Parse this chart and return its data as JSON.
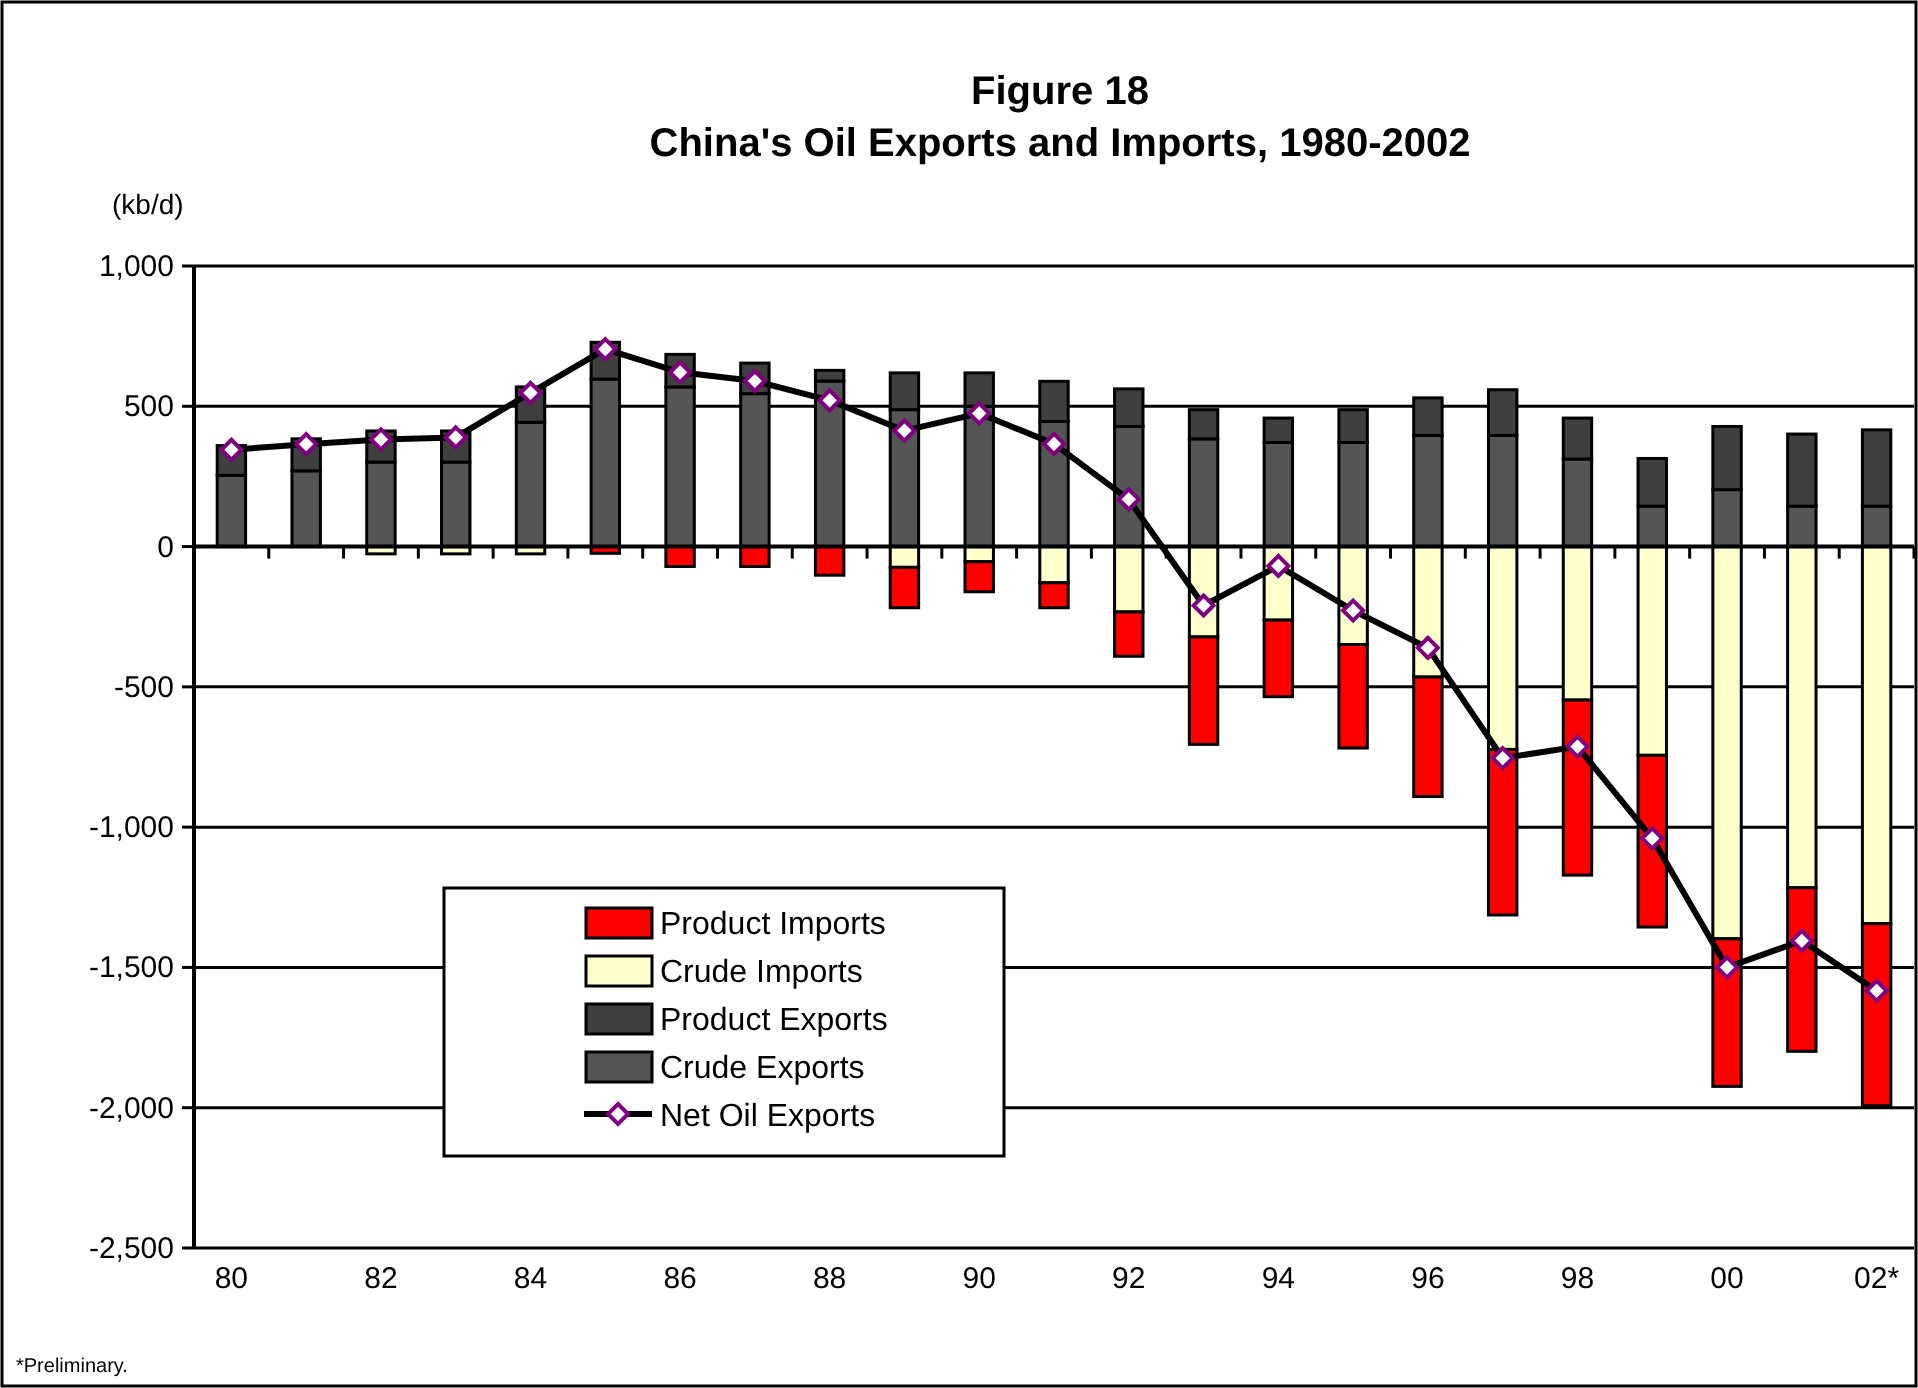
{
  "chart_data": {
    "type": "bar",
    "stacked": true,
    "title": "Figure 18",
    "subtitle": "China's Oil Exports and Imports, 1980-2002",
    "ylabel": "(kb/d)",
    "annotations": [
      "*Preliminary."
    ],
    "categories": [
      "80",
      null,
      "82",
      null,
      "84",
      null,
      "86",
      null,
      "88",
      null,
      "90",
      null,
      "92",
      null,
      "94",
      null,
      "96",
      null,
      "98",
      null,
      "00",
      null,
      "02*"
    ],
    "series": [
      {
        "name": "Crude Exports",
        "color": "#555555",
        "values": [
          254,
          270,
          301,
          301,
          443,
          597,
          569,
          545,
          590,
          488,
          500,
          446,
          428,
          384,
          371,
          371,
          396,
          396,
          312,
          144,
          203,
          144,
          144
        ]
      },
      {
        "name": "Product Exports",
        "color": "#3f3f3f",
        "values": [
          106,
          114,
          111,
          111,
          126,
          131,
          116,
          109,
          38,
          131,
          119,
          143,
          134,
          104,
          87,
          117,
          134,
          163,
          146,
          170,
          225,
          257,
          272
        ]
      },
      {
        "name": "Crude Imports",
        "color": "#ffffcc",
        "values": [
          null,
          null,
          -26,
          -26,
          -26,
          0,
          0,
          0,
          0,
          -74,
          -54,
          -129,
          -233,
          -322,
          -262,
          -349,
          -465,
          -723,
          -547,
          -744,
          -1398,
          -1216,
          -1344
        ]
      },
      {
        "name": "Product Imports",
        "color": "#ff0000",
        "values": [
          0,
          0,
          0,
          0,
          0,
          -24,
          -71,
          -71,
          -102,
          -144,
          -107,
          -89,
          -158,
          -383,
          -273,
          -369,
          -426,
          -590,
          -624,
          -612,
          -526,
          -583,
          -649
        ]
      },
      {
        "name": "Net Oil Exports",
        "type": "line",
        "color": "#000000",
        "marker": "diamond",
        "values": [
          345,
          365,
          382,
          389,
          548,
          704,
          621,
          590,
          521,
          413,
          475,
          366,
          168,
          -210,
          -69,
          -228,
          -361,
          -754,
          -713,
          -1040,
          -1500,
          -1405,
          -1583
        ]
      }
    ],
    "ylim": [
      -2500,
      1000
    ],
    "yticks": [
      {
        "value": 1000,
        "label": "1,000"
      },
      500,
      0,
      -500,
      {
        "value": -1000,
        "label": "-1,000"
      },
      {
        "value": -1500,
        "label": "-1,500"
      },
      {
        "value": -2000,
        "label": "-2,000"
      },
      {
        "value": -2500,
        "label": "-2,500"
      }
    ],
    "grid": "y",
    "legend": "bottom left"
  }
}
